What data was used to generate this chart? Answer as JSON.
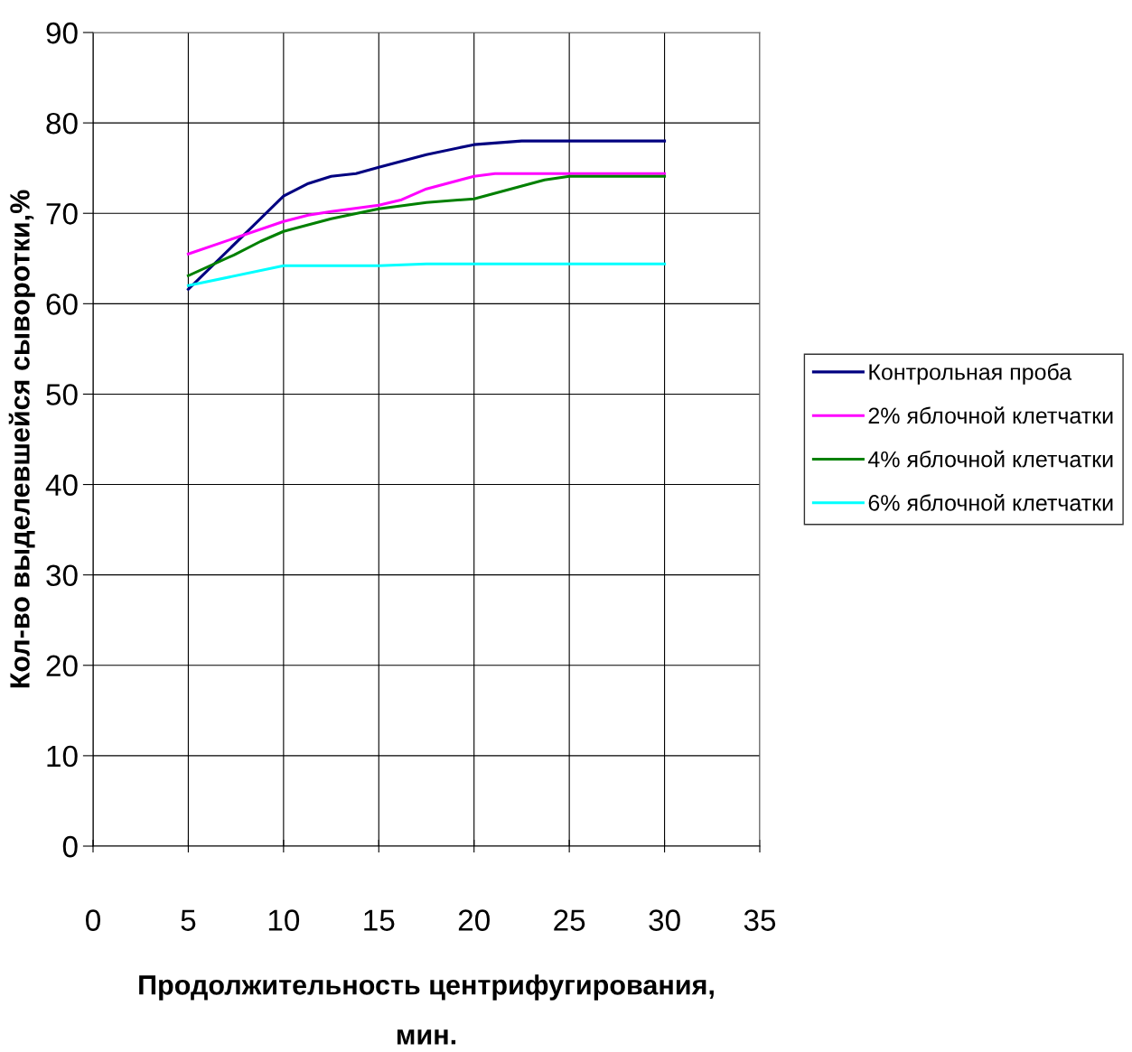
{
  "chart_data": {
    "type": "line",
    "xlabel": "Продолжительность центрифугирования,\nмин.",
    "ylabel": "Кол-во выделевшейся сыворотки,%",
    "xlim": [
      0,
      35
    ],
    "xticks": [
      0,
      5,
      10,
      15,
      20,
      25,
      30,
      35
    ],
    "ylim": [
      0,
      90
    ],
    "yticks": [
      0,
      10,
      20,
      30,
      40,
      50,
      60,
      70,
      80,
      90
    ],
    "grid": true,
    "legend": "right",
    "marker": "none",
    "line_style": "solid",
    "series": [
      {
        "name": "Контрольная проба",
        "color": "#000080",
        "x": [
          5,
          10,
          11.3,
          12.5,
          13.8,
          15,
          17.5,
          20,
          22.5,
          30
        ],
        "values": [
          61.6,
          71.9,
          73.3,
          74.1,
          74.4,
          75.1,
          76.5,
          77.6,
          78.0,
          78.0
        ]
      },
      {
        "name": "2% яблочной клетчатки",
        "color": "#ff00ff",
        "x": [
          5,
          10,
          11.3,
          12.5,
          15,
          16.2,
          17.5,
          20,
          21.1,
          30
        ],
        "values": [
          65.5,
          69.1,
          69.8,
          70.2,
          70.9,
          71.5,
          72.7,
          74.1,
          74.4,
          74.4
        ]
      },
      {
        "name": "4% яблочной клетчатки",
        "color": "#008000",
        "x": [
          5,
          7.4,
          8.8,
          10,
          12.5,
          15,
          17.5,
          20,
          23.7,
          25,
          30
        ],
        "values": [
          63.1,
          65.4,
          66.9,
          68.0,
          69.4,
          70.5,
          71.2,
          71.6,
          73.7,
          74.1,
          74.1
        ]
      },
      {
        "name": "6% яблочной клетчатки",
        "color": "#00ffff",
        "x": [
          5,
          10,
          15,
          17.5,
          30
        ],
        "values": [
          62.0,
          64.2,
          64.2,
          64.4,
          64.4
        ]
      }
    ]
  }
}
